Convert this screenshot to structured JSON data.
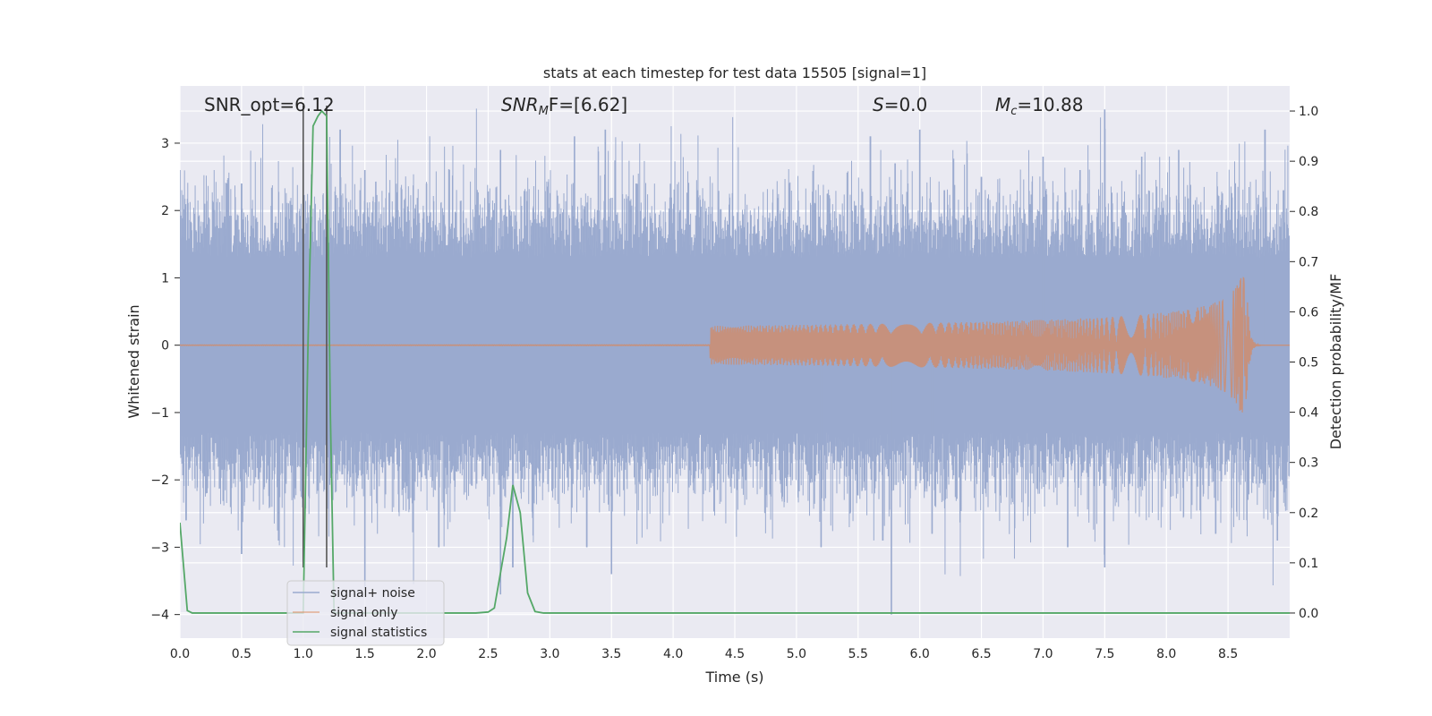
{
  "chart_data": {
    "type": "line",
    "title": "stats at each timestep for test data 15505 [signal=1]",
    "xlabel": "Time (s)",
    "ylabel": "Whitened strain",
    "y2label": "Detection probability/MF",
    "xlim": [
      0.0,
      9.0
    ],
    "ylim": [
      -4.35,
      3.85
    ],
    "y2lim": [
      -0.05,
      1.05
    ],
    "xticks": [
      0.0,
      0.5,
      1.0,
      1.5,
      2.0,
      2.5,
      3.0,
      3.5,
      4.0,
      4.5,
      5.0,
      5.5,
      6.0,
      6.5,
      7.0,
      7.5,
      8.0,
      8.5
    ],
    "xtick_labels": [
      "0.0",
      "0.5",
      "1.0",
      "1.5",
      "2.0",
      "2.5",
      "3.0",
      "3.5",
      "4.0",
      "4.5",
      "5.0",
      "5.5",
      "6.0",
      "6.5",
      "7.0",
      "7.5",
      "8.0",
      "8.5"
    ],
    "yticks": [
      -4,
      -3,
      -2,
      -1,
      0,
      1,
      2,
      3
    ],
    "ytick_labels": [
      "−4",
      "−3",
      "−2",
      "−1",
      "0",
      "1",
      "2",
      "3"
    ],
    "y2ticks": [
      0.0,
      0.1,
      0.2,
      0.3,
      0.4,
      0.5,
      0.6,
      0.7,
      0.8,
      0.9,
      1.0
    ],
    "y2tick_labels": [
      "0.0",
      "0.1",
      "0.2",
      "0.3",
      "0.4",
      "0.5",
      "0.6",
      "0.7",
      "0.8",
      "0.9",
      "1.0"
    ],
    "grid": true,
    "legend_position": "lower-left",
    "annotations": [
      {
        "text": "SNR_opt=6.12",
        "x": 0.2
      },
      {
        "text": "SNR",
        "sub": "M",
        "suffix": "F=[6.62]",
        "italic_prefix": true,
        "x": 2.6
      },
      {
        "text": "S",
        "suffix": "=0.0",
        "italic_prefix": true,
        "x": 5.6
      },
      {
        "text": "M",
        "sub": "c",
        "suffix": "=10.88",
        "italic_prefix": true,
        "x": 6.6
      }
    ],
    "series": [
      {
        "name": "signal+ noise",
        "color": "#9aaacf",
        "kind": "noise-band",
        "band_typical": 1.3,
        "peaks_up": [
          [
            0.0,
            2.6
          ],
          [
            0.2,
            2.1
          ],
          [
            0.5,
            2.4
          ],
          [
            1.0,
            2.7
          ],
          [
            1.3,
            3.2
          ],
          [
            1.5,
            2.6
          ],
          [
            2.0,
            2.4
          ],
          [
            2.6,
            2.9
          ],
          [
            3.2,
            3.1
          ],
          [
            3.45,
            3.2
          ],
          [
            3.7,
            2.4
          ],
          [
            4.2,
            2.3
          ],
          [
            4.9,
            1.6
          ],
          [
            5.6,
            3.1
          ],
          [
            5.8,
            2.7
          ],
          [
            6.0,
            3.2
          ],
          [
            6.2,
            2.3
          ],
          [
            6.5,
            2.5
          ],
          [
            7.0,
            2.8
          ],
          [
            7.3,
            2.6
          ],
          [
            7.5,
            3.5
          ],
          [
            7.8,
            2.8
          ],
          [
            8.1,
            2.9
          ],
          [
            8.8,
            3.2
          ],
          [
            8.95,
            2.3
          ]
        ],
        "peaks_down": [
          [
            0.05,
            -2.6
          ],
          [
            0.5,
            -3.1
          ],
          [
            0.8,
            -2.9
          ],
          [
            1.5,
            -3.6
          ],
          [
            2.1,
            -3.0
          ],
          [
            2.6,
            -3.7
          ],
          [
            2.7,
            -3.3
          ],
          [
            3.3,
            -3.0
          ],
          [
            3.5,
            -3.4
          ],
          [
            5.2,
            -3.0
          ],
          [
            5.7,
            -2.9
          ],
          [
            5.77,
            -4.0
          ],
          [
            6.1,
            -2.8
          ],
          [
            7.2,
            -3.0
          ],
          [
            7.5,
            -3.3
          ],
          [
            8.4,
            -2.8
          ],
          [
            8.9,
            -2.9
          ]
        ]
      },
      {
        "name": "signal only",
        "color": "#dd8452",
        "kind": "chirp",
        "merger_time": 8.65,
        "peak_amplitude": 1.0
      },
      {
        "name": "signal statistics",
        "color": "#55a868",
        "axis": "right",
        "x": [
          0.0,
          0.06,
          0.1,
          0.15,
          0.3,
          0.5,
          0.7,
          0.9,
          0.95,
          1.0,
          1.04,
          1.08,
          1.12,
          1.15,
          1.19,
          1.22,
          1.25,
          1.3,
          1.5,
          1.8,
          2.1,
          2.4,
          2.5,
          2.55,
          2.6,
          2.65,
          2.7,
          2.76,
          2.82,
          2.88,
          2.95,
          3.05,
          4.0,
          5.0,
          6.0,
          7.0,
          8.0,
          9.0
        ],
        "y": [
          0.18,
          0.005,
          0.0,
          0.0,
          0.0,
          0.0,
          0.0,
          0.0,
          0.0,
          0.0,
          0.55,
          0.97,
          0.99,
          1.0,
          0.99,
          0.4,
          0.0,
          0.0,
          0.0,
          0.0,
          0.0,
          0.0,
          0.002,
          0.01,
          0.08,
          0.15,
          0.255,
          0.2,
          0.04,
          0.003,
          0.0,
          0.0,
          0.0,
          0.0,
          0.0,
          0.0,
          0.0,
          0.0
        ]
      }
    ],
    "vertical_markers": [
      {
        "x": 1.0,
        "color": "#555555"
      },
      {
        "x": 1.19,
        "color": "#555555"
      }
    ]
  }
}
